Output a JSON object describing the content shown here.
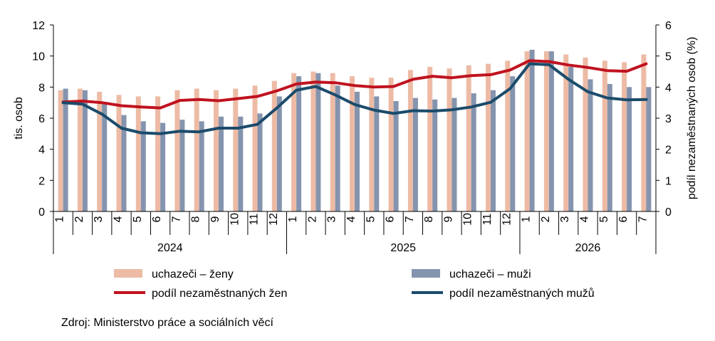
{
  "chart_data": {
    "type": "bar",
    "categories": [
      "1",
      "2",
      "3",
      "4",
      "5",
      "6",
      "7",
      "8",
      "9",
      "10",
      "11",
      "12",
      "1",
      "2",
      "3",
      "4",
      "5",
      "6",
      "7",
      "8",
      "9",
      "10",
      "11",
      "12",
      "1",
      "2",
      "3",
      "4",
      "5",
      "6",
      "7"
    ],
    "year_groups": [
      {
        "label": "2024",
        "count": 12
      },
      {
        "label": "2025",
        "count": 12
      },
      {
        "label": "2026",
        "count": 7
      }
    ],
    "y_left": {
      "label": "tis. osob",
      "min": 0,
      "max": 12,
      "ticks": [
        "0",
        "2",
        "4",
        "6",
        "8",
        "10",
        "12"
      ]
    },
    "y_right": {
      "label": "podíl nezaměstnaných osob (%)",
      "min": 0,
      "max": 6,
      "ticks": [
        "0",
        "1",
        "2",
        "3",
        "4",
        "5",
        "6"
      ]
    },
    "series": [
      {
        "name": "uchazeči – ženy",
        "type": "bar",
        "axis": "left",
        "color": "#EDBBA5",
        "values": [
          7.8,
          7.9,
          7.7,
          7.5,
          7.4,
          7.4,
          7.8,
          7.9,
          7.8,
          7.9,
          8.1,
          8.4,
          8.9,
          9.0,
          8.9,
          8.7,
          8.6,
          8.6,
          9.1,
          9.3,
          9.2,
          9.4,
          9.5,
          9.7,
          10.3,
          10.3,
          10.1,
          9.9,
          9.7,
          9.6,
          10.1
        ]
      },
      {
        "name": "uchazeči – muži",
        "type": "bar",
        "axis": "left",
        "color": "#8594AE",
        "values": [
          7.9,
          7.8,
          7.0,
          6.2,
          5.8,
          5.7,
          5.9,
          5.8,
          6.1,
          6.1,
          6.3,
          7.4,
          8.7,
          8.9,
          8.1,
          7.7,
          7.4,
          7.1,
          7.3,
          7.2,
          7.3,
          7.6,
          7.8,
          8.7,
          10.4,
          10.3,
          9.3,
          8.5,
          8.2,
          8.0,
          8.0
        ]
      },
      {
        "name": "podíl nezaměstnaných žen",
        "type": "line",
        "axis": "right",
        "color": "#C0121F",
        "values": [
          3.52,
          3.55,
          3.5,
          3.4,
          3.36,
          3.33,
          3.57,
          3.6,
          3.56,
          3.63,
          3.7,
          3.88,
          4.1,
          4.16,
          4.14,
          4.05,
          4.0,
          4.02,
          4.25,
          4.35,
          4.3,
          4.37,
          4.4,
          4.55,
          4.85,
          4.82,
          4.71,
          4.63,
          4.53,
          4.51,
          4.75
        ]
      },
      {
        "name": "podíl nezaměstnaných mužů",
        "type": "line",
        "axis": "right",
        "color": "#1B4B6B",
        "values": [
          3.5,
          3.45,
          3.13,
          2.68,
          2.53,
          2.5,
          2.58,
          2.56,
          2.68,
          2.68,
          2.8,
          3.33,
          3.9,
          4.02,
          3.75,
          3.44,
          3.26,
          3.15,
          3.24,
          3.23,
          3.27,
          3.36,
          3.51,
          3.95,
          4.75,
          4.72,
          4.25,
          3.85,
          3.65,
          3.59,
          3.6
        ]
      }
    ],
    "legend": "bottom",
    "source": "Zdroj: Ministerstvo práce a sociálních věcí"
  }
}
